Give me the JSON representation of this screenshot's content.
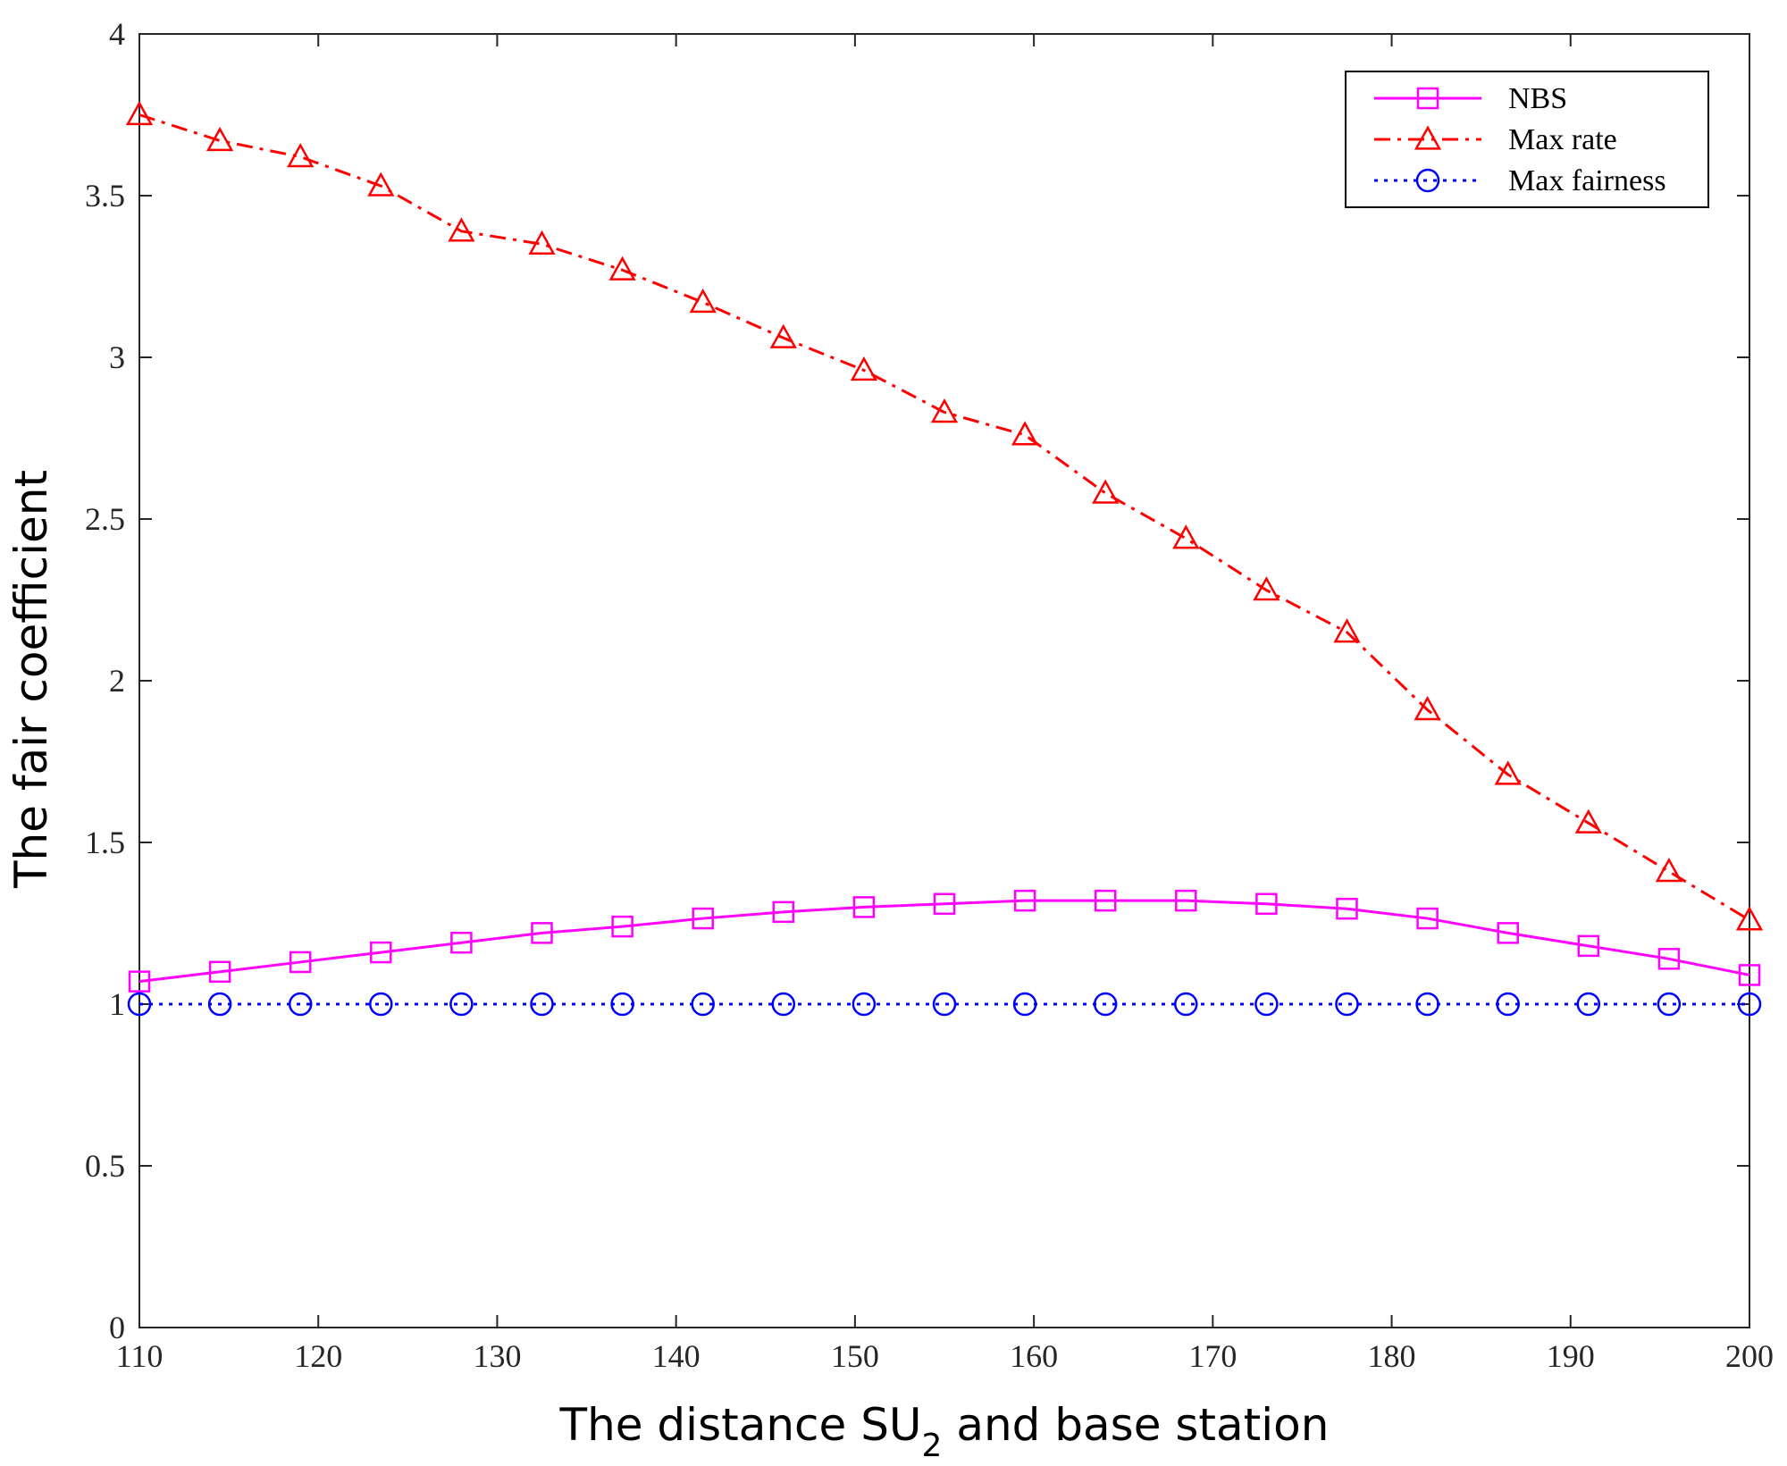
{
  "chart_data": {
    "type": "line",
    "title": "",
    "xlabel": "The distance SU",
    "xlabel_subscript": "2",
    "xlabel_suffix": " and base station",
    "ylabel": "The fair coefficient",
    "xlim": [
      110,
      200
    ],
    "ylim": [
      0,
      4
    ],
    "xticks": [
      110,
      120,
      130,
      140,
      150,
      160,
      170,
      180,
      190,
      200
    ],
    "yticks": [
      0,
      0.5,
      1,
      1.5,
      2,
      2.5,
      3,
      3.5,
      4
    ],
    "ytick_labels": [
      "0",
      "0.5",
      "1",
      "1.5",
      "2",
      "2.5",
      "3",
      "3.5",
      "4"
    ],
    "grid": false,
    "legend_position": "top-right",
    "x": [
      110,
      114.5,
      119,
      123.5,
      128,
      132.5,
      137,
      141.5,
      146,
      150.5,
      155,
      159.5,
      164,
      168.5,
      173,
      177.5,
      182,
      186.5,
      191,
      195.5,
      200
    ],
    "series": [
      {
        "name": "NBS",
        "color": "#ff00ff",
        "dash": "solid",
        "marker": "square",
        "values": [
          1.07,
          1.1,
          1.13,
          1.16,
          1.19,
          1.22,
          1.24,
          1.265,
          1.285,
          1.3,
          1.31,
          1.32,
          1.32,
          1.32,
          1.31,
          1.295,
          1.265,
          1.22,
          1.18,
          1.14,
          1.09
        ]
      },
      {
        "name": "Max rate",
        "color": "#ff0000",
        "dash": "dashdot",
        "marker": "triangle",
        "values": [
          3.75,
          3.67,
          3.62,
          3.53,
          3.39,
          3.35,
          3.27,
          3.17,
          3.06,
          2.96,
          2.83,
          2.76,
          2.58,
          2.44,
          2.28,
          2.15,
          1.91,
          1.71,
          1.56,
          1.41,
          1.26
        ]
      },
      {
        "name": "Max fairness",
        "color": "#0000ff",
        "dash": "dotted",
        "marker": "circle",
        "values": [
          1,
          1,
          1,
          1,
          1,
          1,
          1,
          1,
          1,
          1,
          1,
          1,
          1,
          1,
          1,
          1,
          1,
          1,
          1,
          1,
          1
        ]
      }
    ]
  }
}
